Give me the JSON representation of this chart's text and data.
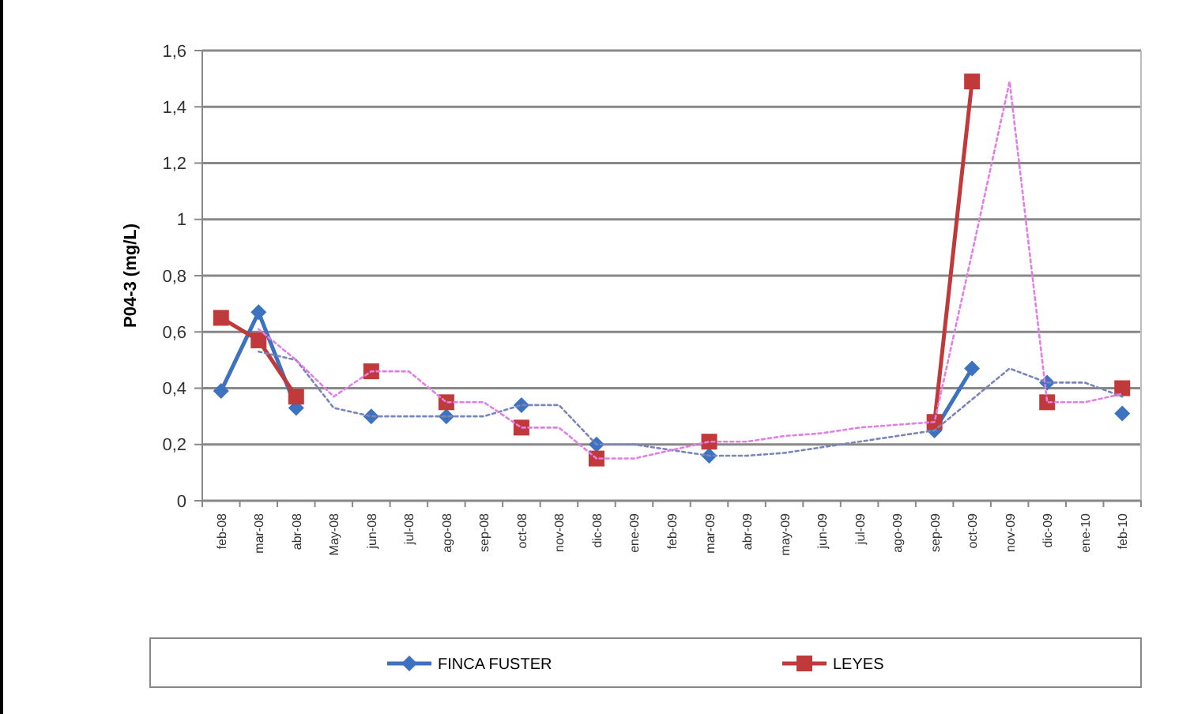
{
  "chart_data": {
    "type": "line",
    "ylabel": "P04-3 (mg/L)",
    "categories": [
      "feb-08",
      "mar-08",
      "abr-08",
      "May-08",
      "jun-08",
      "jul-08",
      "ago-08",
      "sep-08",
      "oct-08",
      "nov-08",
      "dic-08",
      "ene-09",
      "feb-09",
      "mar-09",
      "abr-09",
      "may-09",
      "jun-09",
      "jul-09",
      "ago-09",
      "sep-09",
      "oct-09",
      "nov-09",
      "dic-09",
      "ene-10",
      "feb-10"
    ],
    "series": [
      {
        "name": "FINCA FUSTER",
        "color": "#3d72c0",
        "marker": "diamond",
        "line_style": "solid",
        "values": [
          0.39,
          0.67,
          0.33,
          null,
          0.3,
          null,
          0.3,
          null,
          0.34,
          null,
          0.2,
          null,
          null,
          0.16,
          null,
          null,
          null,
          null,
          null,
          0.25,
          0.47,
          null,
          0.42,
          null,
          0.31
        ]
      },
      {
        "name": "LEYES",
        "color": "#c0393b",
        "marker": "square",
        "line_style": "solid",
        "values": [
          0.65,
          0.57,
          0.37,
          null,
          0.46,
          null,
          0.35,
          null,
          0.26,
          null,
          0.15,
          null,
          null,
          0.21,
          null,
          null,
          null,
          null,
          null,
          0.28,
          1.49,
          null,
          0.35,
          null,
          0.4
        ]
      },
      {
        "color": "#7a86b8",
        "marker": "none",
        "line_style": "dotted",
        "values": [
          null,
          0.53,
          0.5,
          0.33,
          0.3,
          0.3,
          0.3,
          0.3,
          0.34,
          0.34,
          0.2,
          0.2,
          0.18,
          0.16,
          0.16,
          0.17,
          0.19,
          0.21,
          0.23,
          0.25,
          0.36,
          0.47,
          0.42,
          0.42,
          0.37
        ]
      },
      {
        "color": "#e27fe6",
        "marker": "none",
        "line_style": "dotted",
        "values": [
          null,
          0.61,
          0.5,
          0.37,
          0.46,
          0.46,
          0.35,
          0.35,
          0.26,
          0.26,
          0.15,
          0.15,
          0.18,
          0.21,
          0.21,
          0.23,
          0.24,
          0.26,
          0.27,
          0.28,
          0.88,
          1.49,
          0.35,
          0.35,
          0.38
        ]
      }
    ],
    "ylim": [
      0,
      1.6
    ],
    "yticks": [
      {
        "value": 0,
        "label": "0"
      },
      {
        "value": 0.2,
        "label": "0,2"
      },
      {
        "value": 0.4,
        "label": "0,4"
      },
      {
        "value": 0.6,
        "label": "0,6"
      },
      {
        "value": 0.8,
        "label": "0,8"
      },
      {
        "value": 1,
        "label": "1"
      },
      {
        "value": 1.2,
        "label": "1,2"
      },
      {
        "value": 1.4,
        "label": "1,4"
      },
      {
        "value": 1.6,
        "label": "1,6"
      }
    ],
    "grid": "y",
    "legend": "bottom"
  }
}
